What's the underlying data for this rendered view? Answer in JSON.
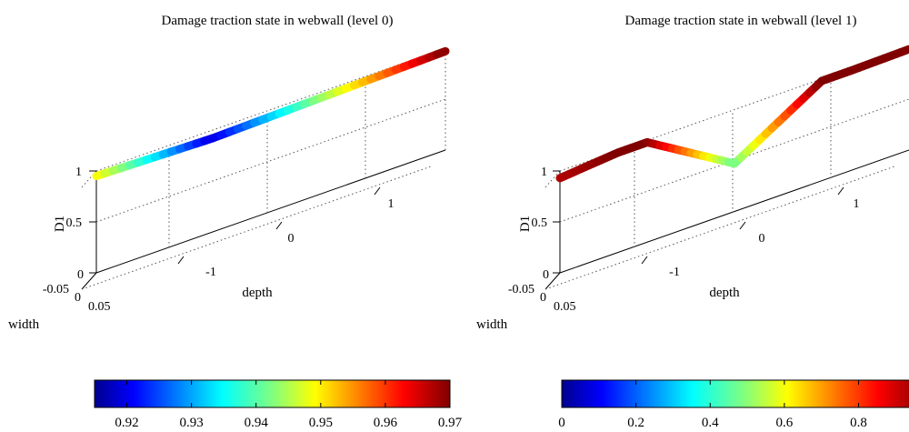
{
  "chart_data": [
    {
      "type": "line",
      "title": "Damage traction state in webwall (level 0)",
      "xlabel": "depth",
      "ylabel": "width",
      "zlabel": "D1",
      "x_ticks": [
        "-1",
        "0",
        "1"
      ],
      "y_ticks": [
        "-0.05",
        "0",
        "0.05"
      ],
      "z_ticks": [
        "0",
        "0.5",
        "1"
      ],
      "xlim": [
        -1.5,
        1.5
      ],
      "ylim": [
        -0.05,
        0.05
      ],
      "zlim": [
        0,
        1
      ],
      "grid": true,
      "x": [
        -1.5,
        -0.5,
        0.5,
        1.5
      ],
      "y": [
        0.95,
        0.92,
        0.945,
        0.97
      ],
      "colormap": "jet",
      "colorbar": {
        "range": [
          0.915,
          0.97
        ],
        "ticks": [
          "0.92",
          "0.93",
          "0.94",
          "0.95",
          "0.96",
          "0.97"
        ],
        "tick_values": [
          0.92,
          0.93,
          0.94,
          0.95,
          0.96,
          0.97
        ]
      }
    },
    {
      "type": "line",
      "title": "Damage traction state in webwall (level 1)",
      "xlabel": "depth",
      "ylabel": "width",
      "zlabel": "D1",
      "x_ticks": [
        "-1",
        "0",
        "1"
      ],
      "y_ticks": [
        "-0.05",
        "0",
        "0.05"
      ],
      "z_ticks": [
        "0",
        "0.5",
        "1"
      ],
      "xlim": [
        -1.5,
        1.5
      ],
      "ylim": [
        -0.05,
        0.05
      ],
      "zlim": [
        0,
        1
      ],
      "grid": true,
      "x": [
        -1.5,
        -1.0,
        -0.75,
        0,
        0.75,
        1.0,
        1.5
      ],
      "y": [
        0.93,
        0.98,
        0.98,
        0.47,
        0.98,
        0.98,
        0.99
      ],
      "colormap": "jet",
      "colorbar": {
        "range": [
          0,
          0.98
        ],
        "ticks": [
          "0",
          "0.2",
          "0.4",
          "0.6",
          "0.8"
        ],
        "tick_values": [
          0,
          0.2,
          0.4,
          0.6,
          0.8
        ]
      }
    }
  ]
}
